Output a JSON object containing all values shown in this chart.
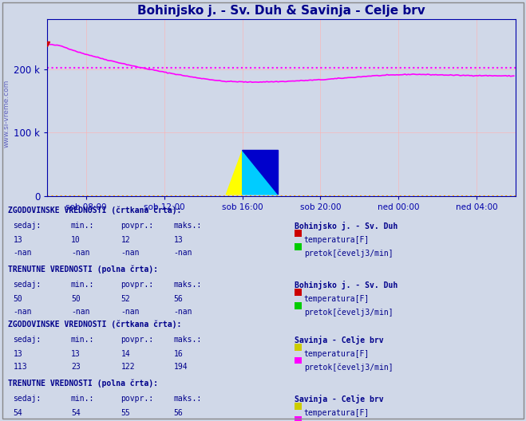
{
  "title": "Bohinjsko j. - Sv. Duh & Savinja - Celje brv",
  "title_color": "#00008B",
  "bg_color": "#d0d8e8",
  "plot_bg_color": "#d0d8e8",
  "grid_color": "#ffb0b0",
  "axis_color": "#0000aa",
  "tick_color": "#0000aa",
  "watermark": "www.si-vreme.com",
  "watermark_color": "#3333aa",
  "xlim": [
    0,
    288
  ],
  "ylim": [
    0,
    280000
  ],
  "yticks": [
    0,
    100000,
    200000
  ],
  "ytick_labels": [
    "0",
    "100 k",
    "200 k"
  ],
  "xtick_positions": [
    24,
    72,
    120,
    168,
    216,
    264
  ],
  "xtick_labels": [
    "sob 08:00",
    "sob 12:00",
    "sob 16:00",
    "sob 20:00",
    "ned 00:00",
    "ned 04:00"
  ],
  "avg_line_value": 202578,
  "avg_line_color": "#ff00ff",
  "flow_line_color": "#ff00ff",
  "bottom_line_color": "#ffaa00",
  "n_points": 288,
  "text_color": "#00008B",
  "bold_color": "#00008B",
  "temp_boh_color": "#cc0000",
  "flow_boh_color": "#00cc00",
  "temp_sav_color": "#cccc00",
  "flow_sav_color": "#ff00ff"
}
